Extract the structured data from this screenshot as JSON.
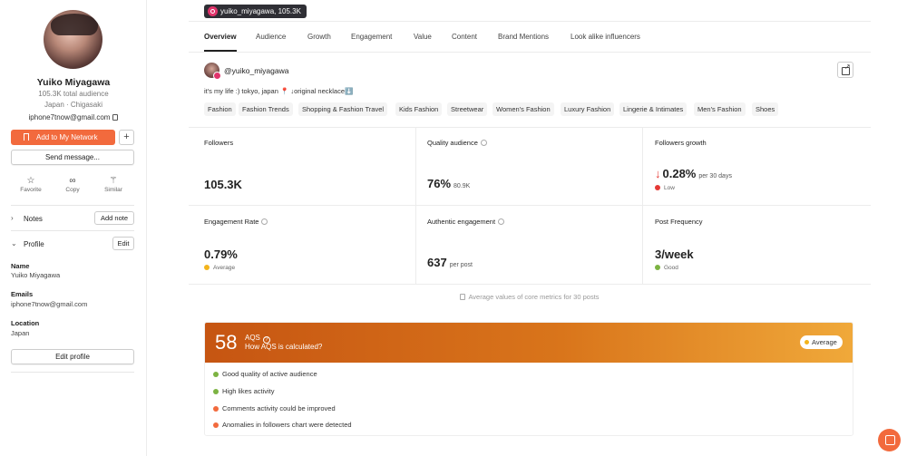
{
  "sidebar": {
    "name": "Yuiko Miyagawa",
    "audience": "105.3K total audience",
    "location": "Japan · Chigasaki",
    "email": "iphone7tnow@gmail.com",
    "add_network_label": "Add to My Network",
    "plus_label": "+",
    "send_message_label": "Send message...",
    "actions": [
      {
        "label": "Favorite",
        "icon": "star-icon"
      },
      {
        "label": "Copy",
        "icon": "link-icon"
      },
      {
        "label": "Similar",
        "icon": "magic-wand-icon"
      }
    ],
    "notes_label": "Notes",
    "add_note_label": "Add note",
    "profile_label": "Profile",
    "edit_label": "Edit",
    "fields": [
      {
        "label": "Name",
        "value": "Yuiko Miyagawa"
      },
      {
        "label": "Emails",
        "value": "iphone7tnow@gmail.com"
      },
      {
        "label": "Location",
        "value": "Japan"
      }
    ],
    "edit_profile_label": "Edit profile"
  },
  "header": {
    "handle_pill": "yuiko_miyagawa,  105.3K"
  },
  "tabs": [
    "Overview",
    "Audience",
    "Growth",
    "Engagement",
    "Value",
    "Content",
    "Brand Mentions",
    "Look alike influencers"
  ],
  "profile": {
    "handle": "@yuiko_miyagawa",
    "bio": "it's my life :) tokyo, japan 📍 ↓original necklace⬇️",
    "categories": [
      "Fashion",
      "Fashion Trends",
      "Shopping & Fashion Travel",
      "Kids Fashion",
      "Streetwear",
      "Women's Fashion",
      "Luxury Fashion",
      "Lingerie & Intimates",
      "Men's Fashion",
      "Shoes"
    ]
  },
  "metrics": {
    "followers": {
      "label": "Followers",
      "value": "105.3K"
    },
    "quality_audience": {
      "label": "Quality audience",
      "value": "76%",
      "sub": "80.9K"
    },
    "followers_growth": {
      "label": "Followers growth",
      "value": "0.28%",
      "sub": "per 30 days",
      "status": "Low",
      "status_color": "#e53935"
    },
    "engagement_rate": {
      "label": "Engagement Rate",
      "value": "0.79%",
      "status": "Average",
      "status_color": "#f3b41c"
    },
    "authentic_engagement": {
      "label": "Authentic engagement",
      "value": "637",
      "sub": "per post"
    },
    "post_frequency": {
      "label": "Post Frequency",
      "value": "3/week",
      "status": "Good",
      "status_color": "#7cb342"
    },
    "footnote": "Average values of core metrics for 30 posts"
  },
  "aqs": {
    "score": "58",
    "title": "AQS",
    "link": "How AQS is calculated?",
    "badge": "Average",
    "items": [
      {
        "text": "Good quality of active audience",
        "color": "#7cb342"
      },
      {
        "text": "High likes activity",
        "color": "#7cb342"
      },
      {
        "text": "Comments activity could be improved",
        "color": "#f26a3d"
      },
      {
        "text": "Anomalies in followers chart were detected",
        "color": "#f26a3d"
      }
    ]
  }
}
